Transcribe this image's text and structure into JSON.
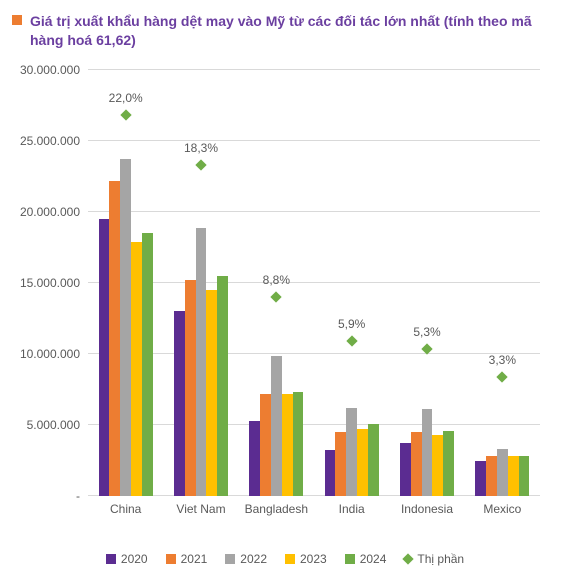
{
  "header": {
    "marker_color": "#ed7d31",
    "title_color": "#6b3fa0",
    "title": "Giá trị xuất khẩu hàng dệt may vào Mỹ từ các đối tác lớn nhất (tính theo mã hàng hoá 61,62)"
  },
  "chart": {
    "type": "bar+scatter",
    "y_axis": {
      "min": 0,
      "max": 30000000,
      "ticks": [
        0,
        5000000,
        10000000,
        15000000,
        20000000,
        25000000,
        30000000
      ],
      "tick_labels": [
        "-",
        "5.000.000",
        "10.000.000",
        "15.000.000",
        "20.000.000",
        "25.000.000",
        "30.000.000"
      ]
    },
    "categories": [
      "China",
      "Viet Nam",
      "Bangladesh",
      "India",
      "Indonesia",
      "Mexico"
    ],
    "series": [
      {
        "name": "2020",
        "color": "#5b2c91",
        "values": [
          19500000,
          13000000,
          5300000,
          3250000,
          3750000,
          2500000
        ]
      },
      {
        "name": "2021",
        "color": "#ed7d31",
        "values": [
          22200000,
          15200000,
          7200000,
          4500000,
          4500000,
          2800000
        ]
      },
      {
        "name": "2022",
        "color": "#a5a5a5",
        "values": [
          23700000,
          18900000,
          9850000,
          6200000,
          6100000,
          3300000
        ]
      },
      {
        "name": "2023",
        "color": "#ffc000",
        "values": [
          17900000,
          14500000,
          7200000,
          4700000,
          4300000,
          2850000
        ]
      },
      {
        "name": "2024",
        "color": "#70ad47",
        "values": [
          18500000,
          15500000,
          7300000,
          5050000,
          4550000,
          2800000
        ]
      }
    ],
    "share": {
      "name": "Thị phần",
      "color": "#70ad47",
      "values_pct": [
        22.0,
        18.3,
        8.8,
        5.9,
        5.3,
        3.3
      ],
      "y_positions": [
        26800000,
        23300000,
        14000000,
        10900000,
        10350000,
        8400000
      ],
      "labels": [
        "22,0%",
        "18,3%",
        "8,8%",
        "5,9%",
        "5,3%",
        "3,3%"
      ]
    },
    "grid_color": "#d9d9d9",
    "axis_font_color": "#595959",
    "background_color": "#ffffff",
    "bar_group_rel_width": 0.72
  }
}
